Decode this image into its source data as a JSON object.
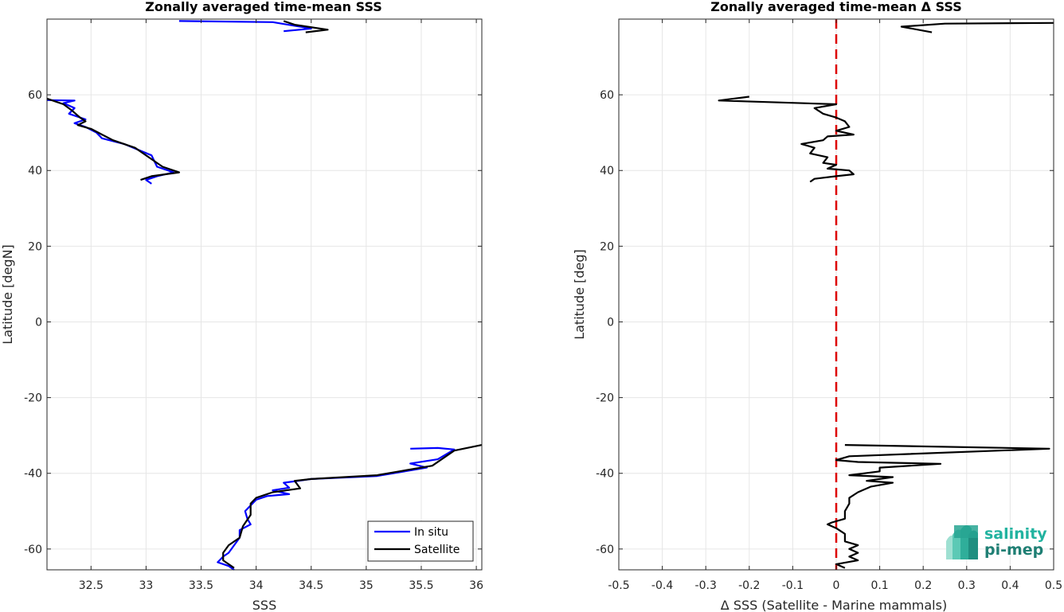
{
  "chart_data": [
    {
      "type": "line",
      "title": "Zonally averaged time-mean SSS",
      "xlabel": "SSS",
      "ylabel": "Latitude [degN]",
      "xlim": [
        32.1,
        36.05
      ],
      "ylim": [
        -65.5,
        80
      ],
      "xticks": [
        32.5,
        33,
        33.5,
        34,
        34.5,
        35,
        35.5,
        36
      ],
      "xtick_labels": [
        "32.5",
        "33",
        "33.5",
        "34",
        "34.5",
        "35",
        "35.5",
        "36"
      ],
      "yticks": [
        -60,
        -40,
        -20,
        0,
        20,
        40,
        60
      ],
      "ytick_labels": [
        "-60",
        "-40",
        "-20",
        "0",
        "20",
        "40",
        "60"
      ],
      "grid": true,
      "legend": "bottom-right",
      "series": [
        {
          "name": "In situ",
          "color": "#0000ff",
          "segments": [
            [
              [
                33.3,
                79.5
              ],
              [
                34.15,
                79.2
              ],
              [
                34.5,
                77.5
              ],
              [
                34.25,
                76.8
              ]
            ],
            [
              [
                32.1,
                58.6
              ],
              [
                32.35,
                58.5
              ],
              [
                32.25,
                57.8
              ],
              [
                32.35,
                56.5
              ],
              [
                32.3,
                55
              ],
              [
                32.45,
                53.5
              ],
              [
                32.35,
                52.5
              ],
              [
                32.45,
                51.5
              ],
              [
                32.55,
                50
              ],
              [
                32.6,
                48.5
              ],
              [
                32.8,
                47
              ],
              [
                33.05,
                44
              ],
              [
                33.1,
                41
              ],
              [
                33.25,
                39.5
              ],
              [
                33.1,
                38.5
              ],
              [
                33.0,
                37.5
              ],
              [
                33.05,
                36.5
              ]
            ],
            [
              [
                35.4,
                -33.5
              ],
              [
                35.65,
                -33.3
              ],
              [
                35.8,
                -33.7
              ],
              [
                35.65,
                -36.3
              ],
              [
                35.4,
                -37.4
              ],
              [
                35.55,
                -38.5
              ],
              [
                35.1,
                -40.7
              ],
              [
                34.5,
                -41.5
              ],
              [
                34.25,
                -42.5
              ],
              [
                34.3,
                -43.8
              ],
              [
                34.15,
                -44.5
              ],
              [
                34.3,
                -45.5
              ],
              [
                34.1,
                -46
              ],
              [
                34.0,
                -47
              ],
              [
                33.95,
                -48.5
              ],
              [
                33.9,
                -50
              ],
              [
                33.92,
                -52
              ],
              [
                33.95,
                -53.5
              ],
              [
                33.85,
                -55
              ],
              [
                33.85,
                -57
              ],
              [
                33.8,
                -59
              ],
              [
                33.75,
                -61
              ],
              [
                33.7,
                -62
              ],
              [
                33.65,
                -63.5
              ],
              [
                33.75,
                -64.5
              ],
              [
                33.8,
                -65.5
              ]
            ]
          ]
        },
        {
          "name": "Satellite",
          "color": "#000000",
          "segments": [
            [
              [
                34.25,
                79.5
              ],
              [
                34.35,
                78.5
              ],
              [
                34.65,
                77.2
              ],
              [
                34.45,
                76.5
              ]
            ],
            [
              [
                32.1,
                59
              ],
              [
                32.25,
                57.5
              ],
              [
                32.32,
                56
              ],
              [
                32.4,
                54
              ],
              [
                32.45,
                53
              ],
              [
                32.38,
                52
              ],
              [
                32.5,
                51
              ],
              [
                32.6,
                49.5
              ],
              [
                32.7,
                48
              ],
              [
                32.9,
                46
              ],
              [
                33.05,
                43
              ],
              [
                33.15,
                41
              ],
              [
                33.3,
                39.5
              ],
              [
                33.05,
                38.5
              ],
              [
                32.95,
                37.5
              ]
            ],
            [
              [
                36.05,
                -32.5
              ],
              [
                35.8,
                -34
              ],
              [
                35.7,
                -36
              ],
              [
                35.6,
                -38
              ],
              [
                35.3,
                -39.5
              ],
              [
                35.1,
                -40.5
              ],
              [
                34.5,
                -41.5
              ],
              [
                34.35,
                -42
              ],
              [
                34.4,
                -44
              ],
              [
                34.15,
                -45
              ],
              [
                34.0,
                -46.5
              ],
              [
                33.95,
                -48
              ],
              [
                33.95,
                -51
              ],
              [
                33.88,
                -54
              ],
              [
                33.85,
                -57
              ],
              [
                33.75,
                -59
              ],
              [
                33.7,
                -61
              ],
              [
                33.7,
                -63
              ],
              [
                33.8,
                -65
              ]
            ]
          ]
        }
      ]
    },
    {
      "type": "line",
      "title": "Zonally averaged time-mean Δ SSS",
      "xlabel": "Δ SSS (Satellite - Marine mammals)",
      "ylabel": "Latitude [deg]",
      "xlim": [
        -0.5,
        0.5
      ],
      "ylim": [
        -65.5,
        80
      ],
      "xticks": [
        -0.5,
        -0.4,
        -0.3,
        -0.2,
        -0.1,
        0,
        0.1,
        0.2,
        0.3,
        0.4,
        0.5
      ],
      "xtick_labels": [
        "-0.5",
        "-0.4",
        "-0.3",
        "-0.2",
        "-0.1",
        "0",
        "0.1",
        "0.2",
        "0.3",
        "0.4",
        "0.5"
      ],
      "yticks": [
        -60,
        -40,
        -20,
        0,
        20,
        40,
        60
      ],
      "ytick_labels": [
        "-60",
        "-40",
        "-20",
        "0",
        "20",
        "40",
        "60"
      ],
      "grid": true,
      "zero_line": {
        "x": 0,
        "color": "#dd0000",
        "style": "dashed"
      },
      "series": [
        {
          "color": "#000000",
          "segments": [
            [
              [
                0.5,
                79
              ],
              [
                0.25,
                78.8
              ],
              [
                0.15,
                78
              ],
              [
                0.22,
                76.5
              ]
            ],
            [
              [
                -0.2,
                59.5
              ],
              [
                -0.27,
                58.5
              ],
              [
                0.0,
                57.5
              ],
              [
                -0.05,
                56.5
              ],
              [
                -0.03,
                55
              ],
              [
                0.0,
                54
              ],
              [
                0.02,
                53
              ],
              [
                0.03,
                51.5
              ],
              [
                0.0,
                50.5
              ],
              [
                0.04,
                49.5
              ],
              [
                -0.02,
                49
              ],
              [
                -0.03,
                48
              ],
              [
                -0.08,
                47
              ],
              [
                -0.05,
                46
              ],
              [
                -0.06,
                44.5
              ],
              [
                -0.02,
                43.5
              ],
              [
                -0.03,
                42
              ],
              [
                0.0,
                41.5
              ],
              [
                -0.02,
                40.5
              ],
              [
                0.03,
                40
              ],
              [
                0.04,
                39
              ],
              [
                0.0,
                38.5
              ],
              [
                -0.05,
                37.8
              ],
              [
                -0.06,
                37
              ]
            ],
            [
              [
                0.02,
                -32.5
              ],
              [
                0.49,
                -33.5
              ],
              [
                0.03,
                -35.5
              ],
              [
                0.0,
                -36.5
              ],
              [
                0.05,
                -37
              ],
              [
                0.24,
                -37.5
              ],
              [
                0.1,
                -38.5
              ],
              [
                0.1,
                -39.5
              ],
              [
                0.03,
                -40.5
              ],
              [
                0.13,
                -41
              ],
              [
                0.07,
                -42
              ],
              [
                0.13,
                -42.5
              ],
              [
                0.08,
                -43.5
              ],
              [
                0.05,
                -45
              ],
              [
                0.03,
                -46.5
              ],
              [
                0.03,
                -48
              ],
              [
                0.02,
                -50
              ],
              [
                0.02,
                -52
              ],
              [
                -0.01,
                -53
              ],
              [
                -0.02,
                -53.5
              ],
              [
                0.0,
                -54.5
              ],
              [
                0.02,
                -56
              ],
              [
                0.02,
                -58
              ],
              [
                0.05,
                -59
              ],
              [
                0.03,
                -60
              ],
              [
                0.05,
                -61
              ],
              [
                0.03,
                -62
              ],
              [
                0.05,
                -63
              ],
              [
                0.0,
                -64
              ],
              [
                0.02,
                -65
              ]
            ]
          ]
        }
      ]
    }
  ],
  "logo": {
    "line1": "salinity",
    "line2": "pi-mep"
  },
  "colors": {
    "grid": "#e6e6e6",
    "axis": "#262626"
  }
}
